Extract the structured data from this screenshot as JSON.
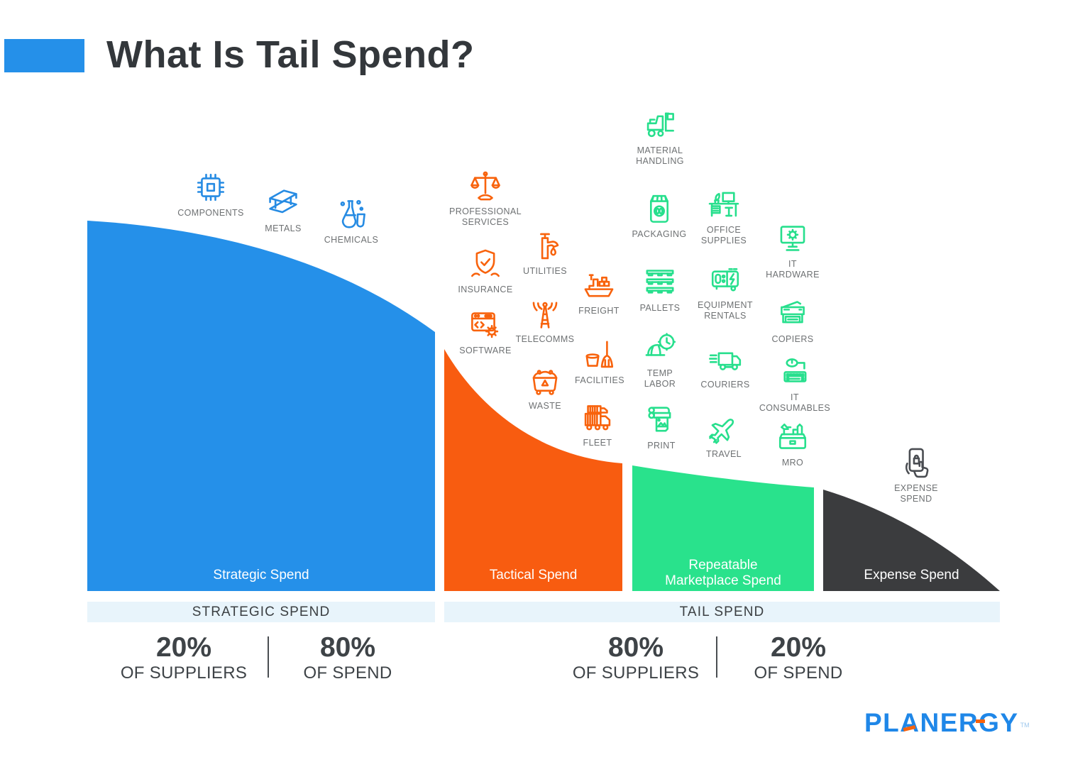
{
  "header": {
    "title": "What Is Tail Spend?"
  },
  "colors": {
    "blue": "#2590E9",
    "orange": "#F85C10",
    "green": "#29E28C",
    "dark": "#3B3C3E",
    "band": "#E8F4FB",
    "icon_blue": "#268BE3",
    "icon_orange": "#F8630D",
    "icon_green": "#27DF8D",
    "icon_dark": "#4A4D52"
  },
  "sections": [
    {
      "id": "strategic",
      "label": "Strategic Spend",
      "color_key": "blue"
    },
    {
      "id": "tactical",
      "label": "Tactical Spend",
      "color_key": "orange"
    },
    {
      "id": "marketplace",
      "label": "Repeatable\nMarketplace Spend",
      "color_key": "green"
    },
    {
      "id": "expense",
      "label": "Expense Spend",
      "color_key": "dark"
    }
  ],
  "bands": [
    {
      "label": "STRATEGIC SPEND"
    },
    {
      "label": "TAIL SPEND"
    }
  ],
  "stats": [
    {
      "group": "strategic",
      "suppliers": {
        "value": "20%",
        "label": "OF SUPPLIERS"
      },
      "spend": {
        "value": "80%",
        "label": "OF SPEND"
      }
    },
    {
      "group": "tail",
      "suppliers": {
        "value": "80%",
        "label": "OF SUPPLIERS"
      },
      "spend": {
        "value": "20%",
        "label": "OF SPEND"
      }
    }
  ],
  "categories": [
    {
      "label": "COMPONENTS",
      "icon": "components",
      "group": "blue"
    },
    {
      "label": "METALS",
      "icon": "metals",
      "group": "blue"
    },
    {
      "label": "CHEMICALS",
      "icon": "chemicals",
      "group": "blue"
    },
    {
      "label": "PROFESSIONAL\nSERVICES",
      "icon": "professional-services",
      "group": "orange"
    },
    {
      "label": "INSURANCE",
      "icon": "insurance",
      "group": "orange"
    },
    {
      "label": "UTILITIES",
      "icon": "utilities",
      "group": "orange"
    },
    {
      "label": "SOFTWARE",
      "icon": "software",
      "group": "orange"
    },
    {
      "label": "TELECOMMS",
      "icon": "telecomms",
      "group": "orange"
    },
    {
      "label": "FREIGHT",
      "icon": "freight",
      "group": "orange"
    },
    {
      "label": "FACILITIES",
      "icon": "facilities",
      "group": "orange"
    },
    {
      "label": "WASTE",
      "icon": "waste",
      "group": "orange"
    },
    {
      "label": "FLEET",
      "icon": "fleet",
      "group": "orange"
    },
    {
      "label": "MATERIAL\nHANDLING",
      "icon": "material-handling",
      "group": "green"
    },
    {
      "label": "PACKAGING",
      "icon": "packaging",
      "group": "green"
    },
    {
      "label": "OFFICE\nSUPPLIES",
      "icon": "office-supplies",
      "group": "green"
    },
    {
      "label": "PALLETS",
      "icon": "pallets",
      "group": "green"
    },
    {
      "label": "EQUIPMENT\nRENTALS",
      "icon": "equipment-rentals",
      "group": "green"
    },
    {
      "label": "IT\nHARDWARE",
      "icon": "it-hardware",
      "group": "green"
    },
    {
      "label": "COPIERS",
      "icon": "copiers",
      "group": "green"
    },
    {
      "label": "TEMP\nLABOR",
      "icon": "temp-labor",
      "group": "green"
    },
    {
      "label": "COURIERS",
      "icon": "couriers",
      "group": "green"
    },
    {
      "label": "IT\nCONSUMABLES",
      "icon": "it-consumables",
      "group": "green"
    },
    {
      "label": "PRINT",
      "icon": "print",
      "group": "green"
    },
    {
      "label": "TRAVEL",
      "icon": "travel",
      "group": "green"
    },
    {
      "label": "MRO",
      "icon": "mro",
      "group": "green"
    },
    {
      "label": "EXPENSE\nSPEND",
      "icon": "expense-spend",
      "group": "dark"
    }
  ],
  "logo": {
    "text": "PLANERGY",
    "tm": "TM"
  },
  "chart_data": {
    "type": "area",
    "title": "What Is Tail Spend?",
    "segments": [
      "Strategic Spend",
      "Tactical Spend",
      "Repeatable Marketplace Spend",
      "Expense Spend"
    ],
    "groups": [
      {
        "label": "STRATEGIC SPEND",
        "suppliers": "20%",
        "spend": "80%"
      },
      {
        "label": "TAIL SPEND",
        "suppliers": "80%",
        "spend": "20%"
      }
    ]
  }
}
